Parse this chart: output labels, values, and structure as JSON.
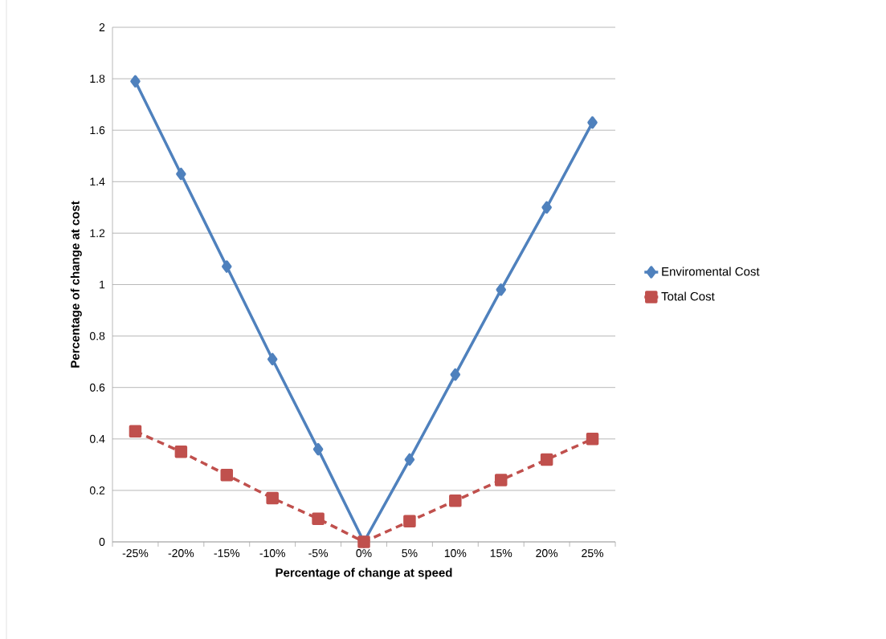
{
  "chart_data": {
    "type": "line",
    "xlabel": "Percentage of change at speed",
    "ylabel": "Percentage of change at cost",
    "categories": [
      "-25%",
      "-20%",
      "-15%",
      "-10%",
      "-5%",
      "0%",
      "5%",
      "10%",
      "15%",
      "20%",
      "25%"
    ],
    "series": [
      {
        "name": "Enviromental Cost",
        "color": "#4f81bd",
        "marker": "diamond",
        "line_style": "solid",
        "values": [
          1.79,
          1.43,
          1.07,
          0.71,
          0.36,
          0,
          0.32,
          0.65,
          0.98,
          1.3,
          1.63
        ]
      },
      {
        "name": "Total Cost",
        "color": "#c0504d",
        "marker": "square",
        "line_style": "dashed",
        "values": [
          0.43,
          0.35,
          0.26,
          0.17,
          0.09,
          0,
          0.08,
          0.16,
          0.24,
          0.32,
          0.4
        ]
      }
    ],
    "ylim": [
      0,
      2
    ],
    "yticks": [
      0,
      0.2,
      0.4,
      0.6,
      0.8,
      1,
      1.2,
      1.4,
      1.6,
      1.8,
      2
    ],
    "grid": "y",
    "legend": "right"
  }
}
